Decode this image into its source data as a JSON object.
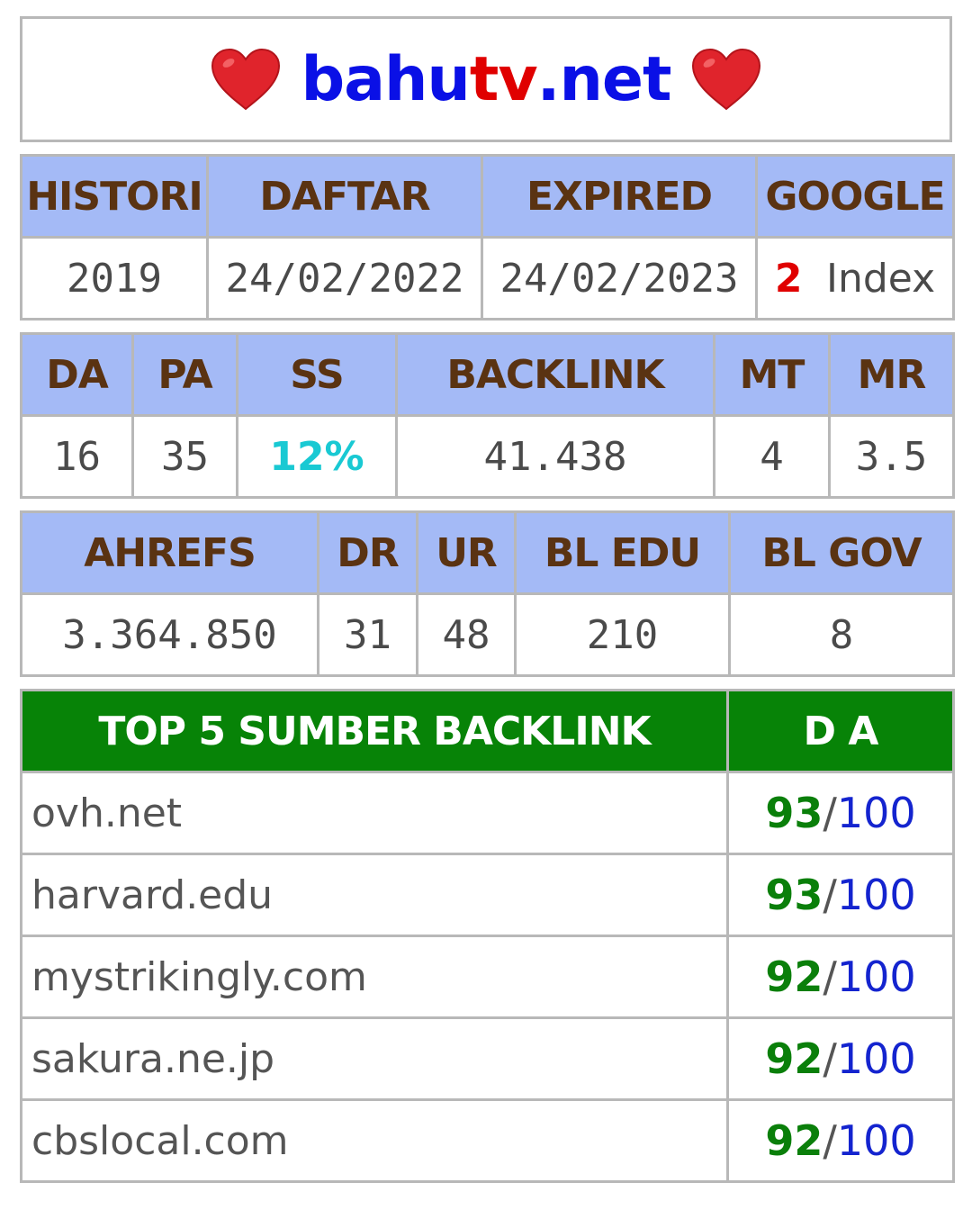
{
  "title": {
    "part1": "bahu",
    "part2": "tv",
    "part3": ".net"
  },
  "icons": {
    "left": "heart-icon",
    "right": "heart-icon",
    "heart_color": "#e0242c"
  },
  "colors": {
    "header_bg": "#a4baf6",
    "header_text": "#5a3312",
    "green_header": "#078307",
    "ss_color": "#19c9d3"
  },
  "table1": {
    "headers": [
      "HISTORI",
      "DAFTAR",
      "EXPIRED",
      "GOOGLE"
    ],
    "values": {
      "histori": "2019",
      "daftar": "24/02/2022",
      "expired": "24/02/2023",
      "google_count": "2",
      "google_label": "Index"
    }
  },
  "table2": {
    "headers": [
      "DA",
      "PA",
      "SS",
      "BACKLINK",
      "MT",
      "MR"
    ],
    "values": [
      "16",
      "35",
      "12%",
      "41.438",
      "4",
      "3.5"
    ]
  },
  "table3": {
    "headers": [
      "AHREFS",
      "DR",
      "UR",
      "BL EDU",
      "BL GOV"
    ],
    "values": [
      "3.364.850",
      "31",
      "48",
      "210",
      "8"
    ]
  },
  "table4": {
    "headers": [
      "TOP 5 SUMBER BACKLINK",
      "D A"
    ],
    "rows": [
      {
        "source": "ovh.net",
        "da": "93",
        "max": "100"
      },
      {
        "source": "harvard.edu",
        "da": "93",
        "max": "100"
      },
      {
        "source": "mystrikingly.com",
        "da": "92",
        "max": "100"
      },
      {
        "source": "sakura.ne.jp",
        "da": "92",
        "max": "100"
      },
      {
        "source": "cbslocal.com",
        "da": "92",
        "max": "100"
      }
    ]
  }
}
